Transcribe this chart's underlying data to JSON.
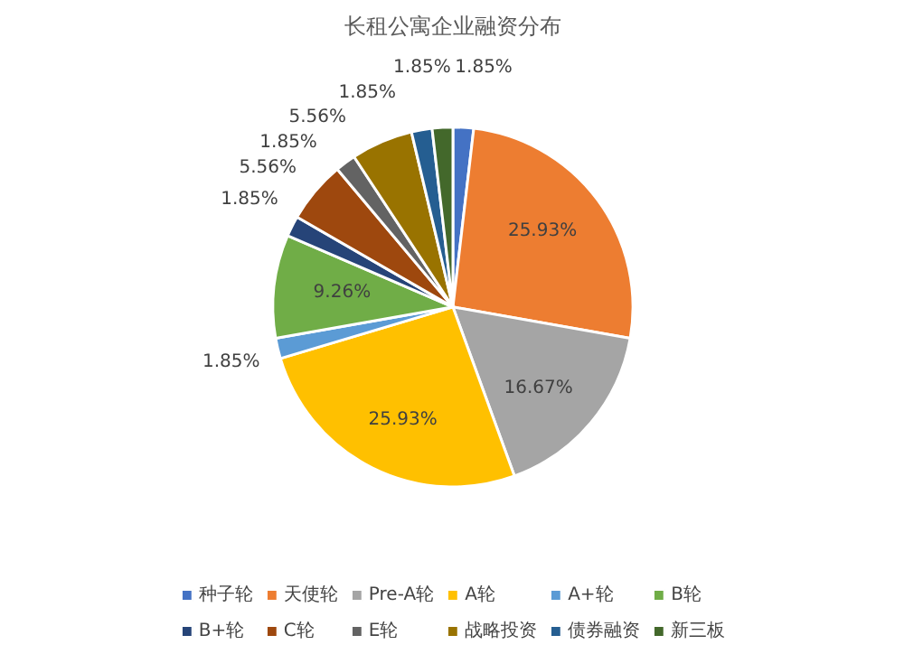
{
  "chart_data": {
    "type": "pie",
    "title": "长租公寓企业融资分布",
    "categories": [
      "种子轮",
      "天使轮",
      "Pre-A轮",
      "A轮",
      "A+轮",
      "B轮",
      "B+轮",
      "C轮",
      "E轮",
      "战略投资",
      "债券融资",
      "新三板"
    ],
    "values": [
      1.85,
      25.93,
      16.67,
      25.93,
      1.85,
      9.26,
      1.85,
      5.56,
      1.85,
      5.56,
      1.85,
      1.85
    ],
    "value_labels": [
      "1.85%",
      "25.93%",
      "16.67%",
      "25.93%",
      "1.85%",
      "9.26%",
      "1.85%",
      "5.56%",
      "1.85%",
      "5.56%",
      "1.85%",
      "1.85%"
    ],
    "colors": [
      "#4472c4",
      "#ed7d31",
      "#a5a5a5",
      "#ffc000",
      "#5b9bd5",
      "#70ad47",
      "#264478",
      "#9e480e",
      "#636363",
      "#997300",
      "#255e91",
      "#43682b"
    ],
    "legend": "bottom"
  }
}
